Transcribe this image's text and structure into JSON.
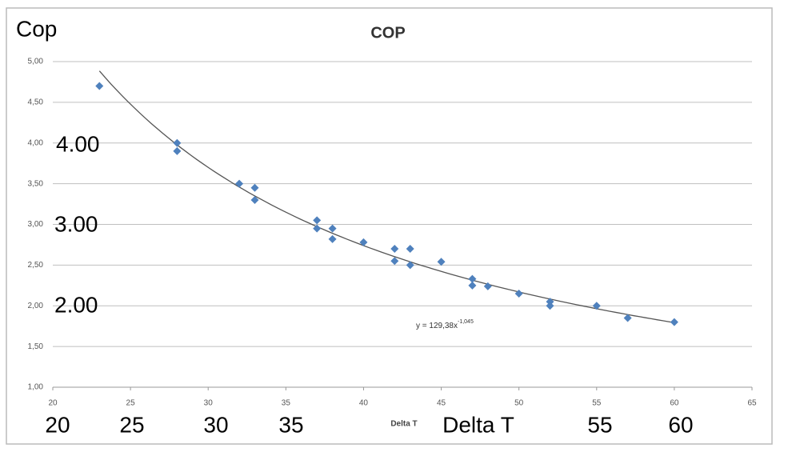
{
  "chart_data": {
    "type": "scatter",
    "title": "COP",
    "x_label": "Delta T",
    "x": [
      23,
      28,
      28,
      32,
      33,
      33,
      37,
      37,
      38,
      38,
      40,
      42,
      42,
      43,
      43,
      45,
      47,
      47,
      48,
      50,
      52,
      52,
      55,
      57,
      60
    ],
    "series": [
      {
        "name": "COP",
        "color": "#4f81bd",
        "values": [
          4.7,
          4.0,
          3.9,
          3.5,
          3.45,
          3.3,
          3.05,
          2.95,
          2.95,
          2.82,
          2.78,
          2.7,
          2.55,
          2.7,
          2.5,
          2.54,
          2.33,
          2.25,
          2.24,
          2.15,
          2.05,
          2.0,
          2.0,
          1.85,
          1.8
        ]
      }
    ],
    "xlim": [
      20,
      65
    ],
    "xticks": [
      20,
      25,
      30,
      35,
      40,
      45,
      50,
      55,
      60,
      65
    ],
    "ylim": [
      1,
      5
    ],
    "yticks": [
      {
        "value": 1,
        "label": "1,00"
      },
      {
        "value": 1.5,
        "label": "1,50"
      },
      {
        "value": 2,
        "label": "2,00"
      },
      {
        "value": 2.5,
        "label": "2,50"
      },
      {
        "value": 3,
        "label": "3,00"
      },
      {
        "value": 3.5,
        "label": "3,50"
      },
      {
        "value": 4,
        "label": "4,00"
      },
      {
        "value": 4.5,
        "label": "4,50"
      },
      {
        "value": 5,
        "label": "5,00"
      }
    ],
    "grid": true,
    "trendline": {
      "a": 129.38,
      "b": -1.045,
      "x_range": [
        23,
        60
      ],
      "color": "#555555",
      "label_base": "y = 129,38x",
      "label_exponent": "-1,045"
    },
    "overlay_labels": [
      "Cop",
      "4.00",
      "3.00",
      "2.00",
      "20",
      "25",
      "30",
      "35",
      "Delta T",
      "55",
      "60"
    ]
  }
}
